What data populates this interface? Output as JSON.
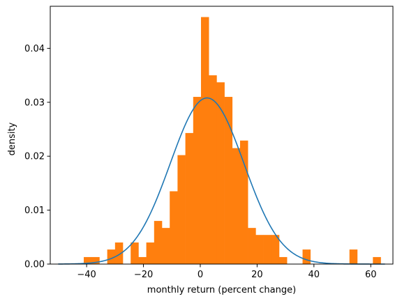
{
  "chart_data": {
    "type": "bar",
    "title": "",
    "xlabel": "monthly return (percent change)",
    "ylabel": "density",
    "xlim": [
      -52.8,
      67.8
    ],
    "ylim": [
      0,
      0.0478
    ],
    "x_ticks": [
      -40,
      -20,
      0,
      20,
      40,
      60
    ],
    "x_tick_labels": [
      "−40",
      "−20",
      "0",
      "20",
      "40",
      "60"
    ],
    "y_ticks": [
      0,
      0.01,
      0.02,
      0.03,
      0.04
    ],
    "y_tick_labels": [
      "0.00",
      "0.01",
      "0.02",
      "0.03",
      "0.04"
    ],
    "grid": false,
    "colors": {
      "histogram": "#ff7f0e",
      "density_curve": "#1f77b4",
      "axes": "#000000"
    },
    "series": [
      {
        "type": "histogram",
        "bin_width": 2.75,
        "bins": [
          {
            "x0": -41.0,
            "density": 0.0013
          },
          {
            "x0": -38.25,
            "density": 0.0013
          },
          {
            "x0": -35.5,
            "density": 0.0
          },
          {
            "x0": -32.75,
            "density": 0.0027
          },
          {
            "x0": -30.0,
            "density": 0.004
          },
          {
            "x0": -27.25,
            "density": 0.0
          },
          {
            "x0": -24.5,
            "density": 0.004
          },
          {
            "x0": -21.75,
            "density": 0.0013
          },
          {
            "x0": -19.0,
            "density": 0.004
          },
          {
            "x0": -16.25,
            "density": 0.008
          },
          {
            "x0": -13.5,
            "density": 0.0067
          },
          {
            "x0": -10.75,
            "density": 0.0135
          },
          {
            "x0": -8.0,
            "density": 0.0202
          },
          {
            "x0": -5.25,
            "density": 0.0243
          },
          {
            "x0": -2.5,
            "density": 0.031
          },
          {
            "x0": 0.25,
            "density": 0.0458
          },
          {
            "x0": 3.0,
            "density": 0.035
          },
          {
            "x0": 5.75,
            "density": 0.0337
          },
          {
            "x0": 8.5,
            "density": 0.031
          },
          {
            "x0": 11.25,
            "density": 0.0215
          },
          {
            "x0": 14.0,
            "density": 0.0229
          },
          {
            "x0": 16.75,
            "density": 0.0067
          },
          {
            "x0": 19.5,
            "density": 0.0054
          },
          {
            "x0": 22.25,
            "density": 0.0054
          },
          {
            "x0": 25.0,
            "density": 0.0054
          },
          {
            "x0": 27.75,
            "density": 0.0013
          },
          {
            "x0": 30.5,
            "density": 0.0
          },
          {
            "x0": 33.25,
            "density": 0.0
          },
          {
            "x0": 36.0,
            "density": 0.0027
          },
          {
            "x0": 38.75,
            "density": 0.0
          },
          {
            "x0": 41.5,
            "density": 0.0
          },
          {
            "x0": 44.25,
            "density": 0.0
          },
          {
            "x0": 47.0,
            "density": 0.0
          },
          {
            "x0": 49.75,
            "density": 0.0
          },
          {
            "x0": 52.5,
            "density": 0.0027
          },
          {
            "x0": 55.25,
            "density": 0.0
          },
          {
            "x0": 58.0,
            "density": 0.0
          },
          {
            "x0": 60.75,
            "density": 0.0013
          }
        ]
      },
      {
        "type": "line",
        "form": "normal_pdf",
        "mean": 2.4,
        "std": 12.95,
        "x_range": [
          -50,
          65
        ]
      }
    ]
  }
}
